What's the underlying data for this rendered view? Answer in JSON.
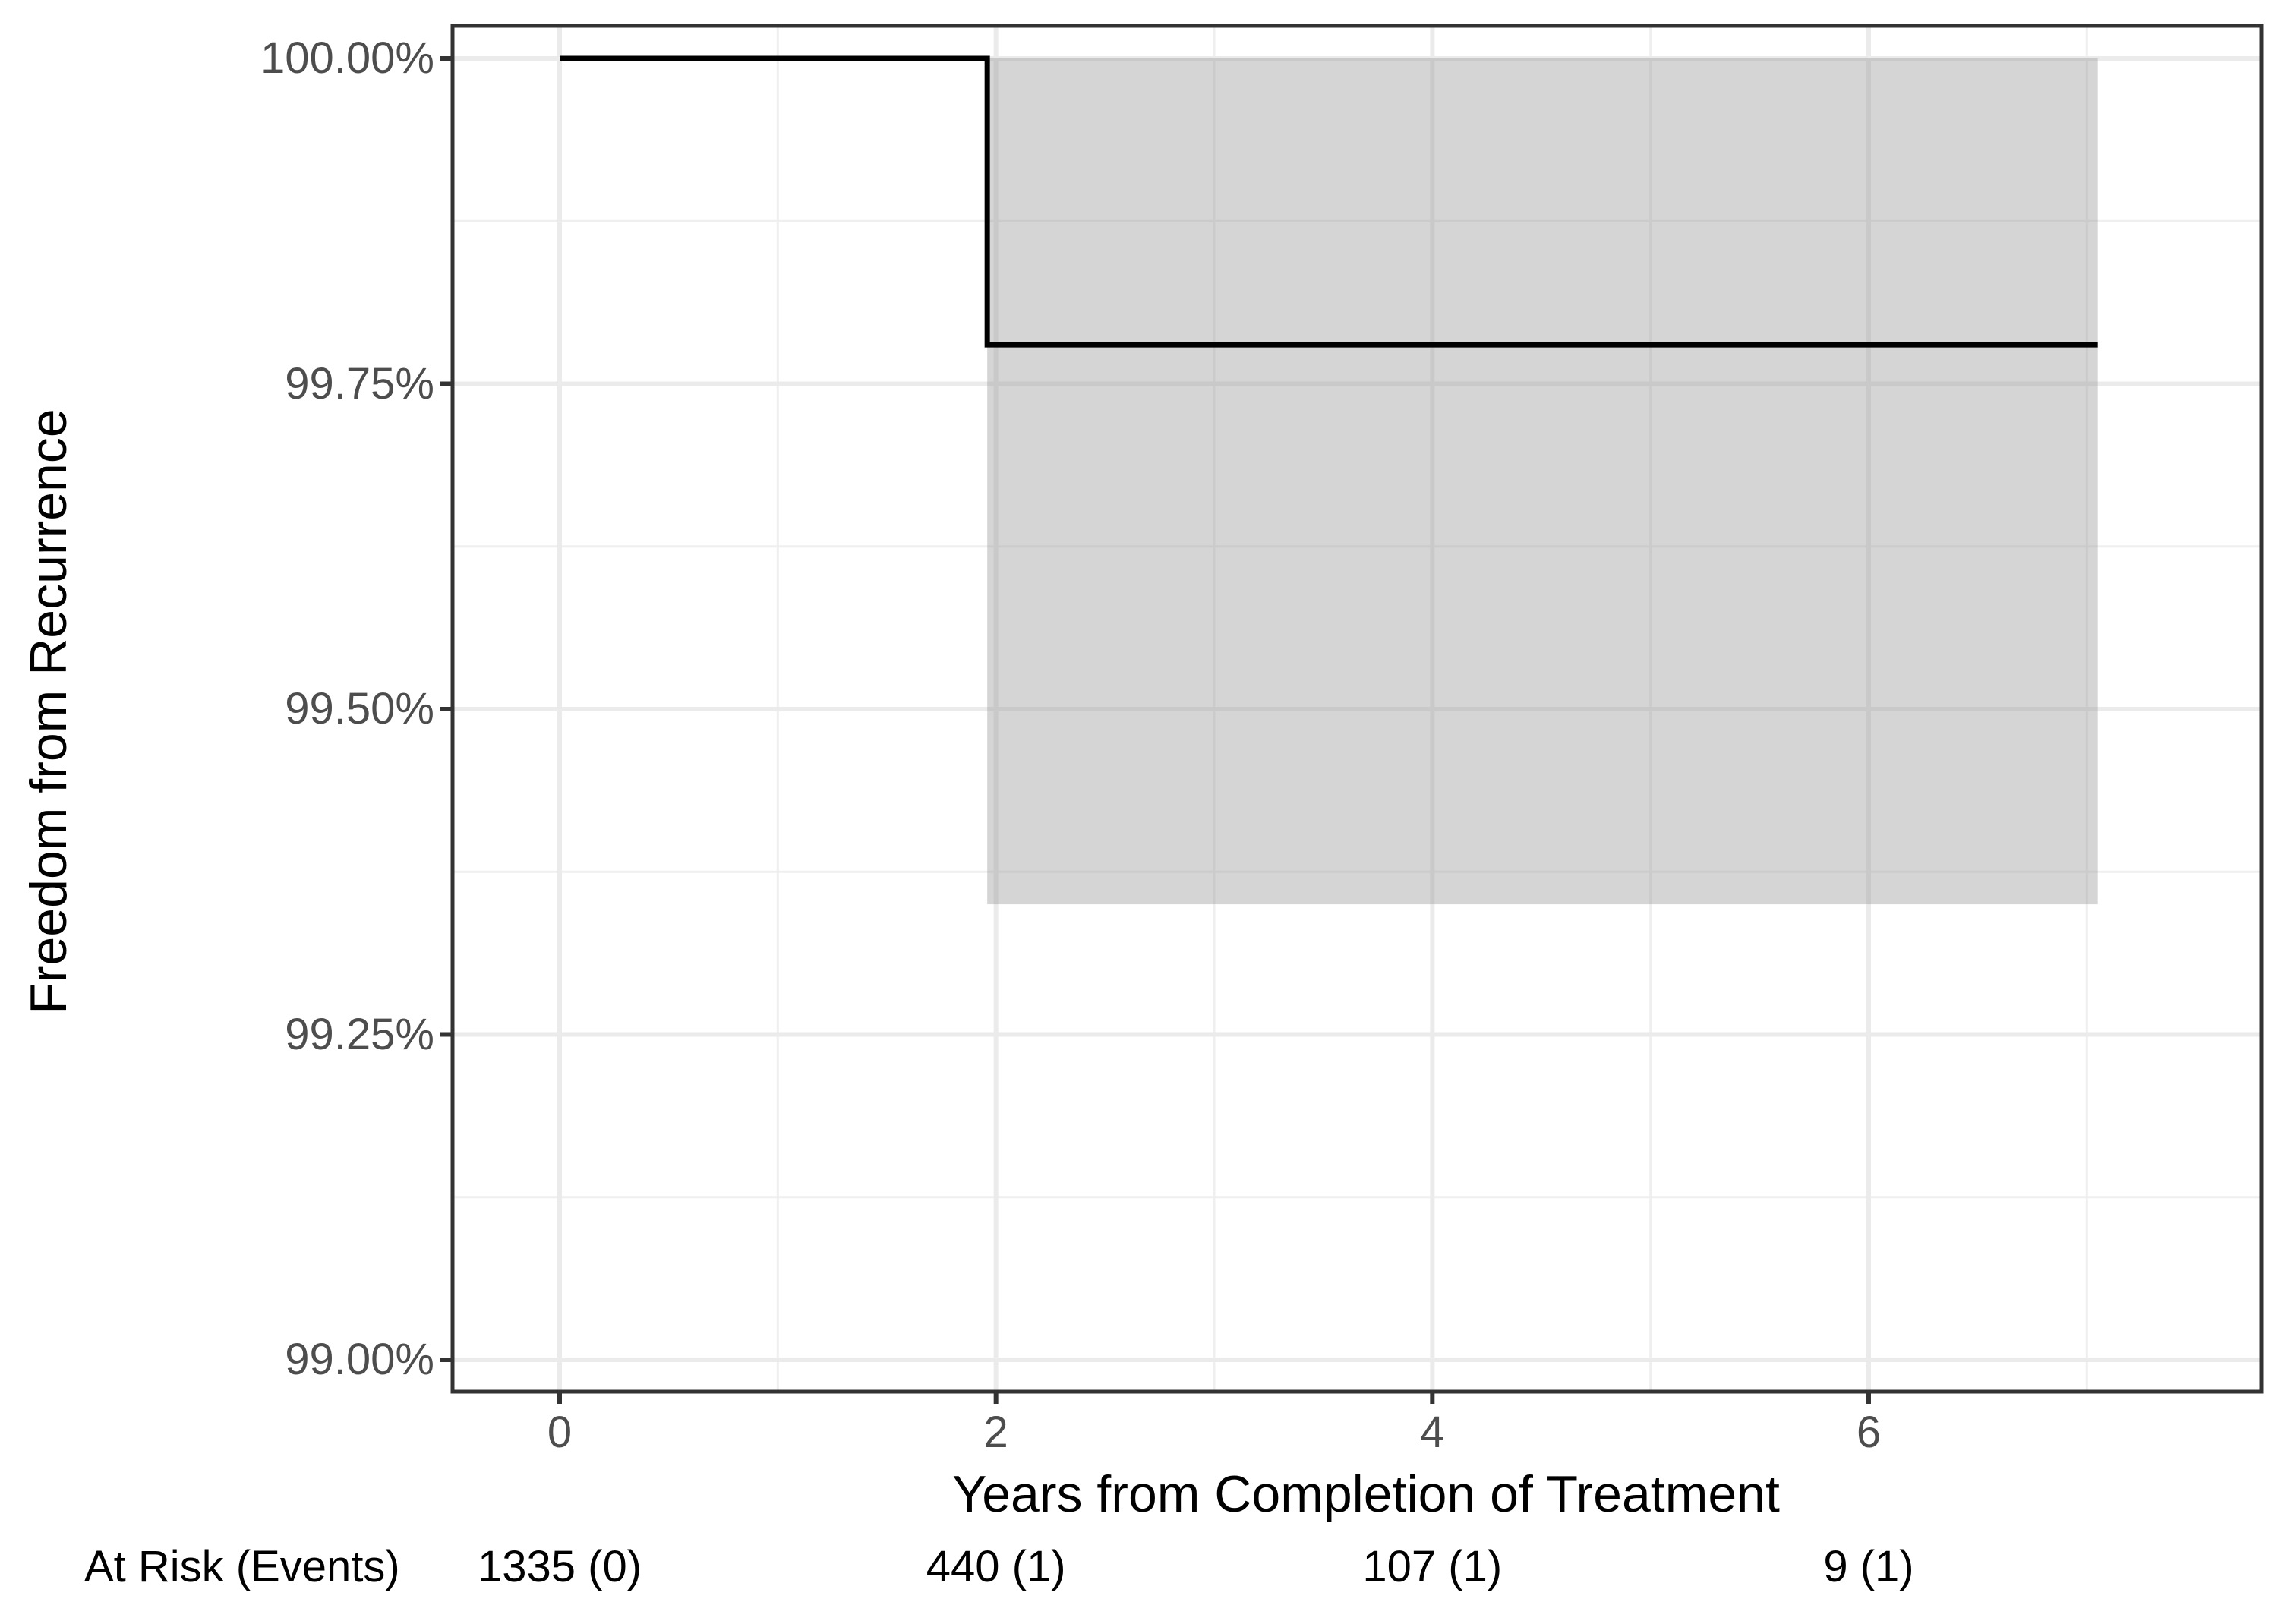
{
  "chart_data": {
    "type": "line",
    "subtype": "kaplan-meier-step-with-confidence-band",
    "title": "",
    "xlabel": "Years from Completion of Treatment",
    "ylabel": "Freedom from Recurrence",
    "xlim": [
      -0.49,
      7.8
    ],
    "ylim": [
      98.98,
      100.02
    ],
    "grid": "major-and-minor",
    "legend_position": "none",
    "x_ticks": [
      {
        "value": 0,
        "label": "0"
      },
      {
        "value": 2,
        "label": "2"
      },
      {
        "value": 4,
        "label": "4"
      },
      {
        "value": 6,
        "label": "6"
      }
    ],
    "x_minor_gridlines": [
      1,
      3,
      5,
      7
    ],
    "y_ticks": [
      {
        "value": 100.0,
        "label": "100.00%"
      },
      {
        "value": 99.75,
        "label": "99.75%"
      },
      {
        "value": 99.5,
        "label": "99.50%"
      },
      {
        "value": 99.25,
        "label": "99.25%"
      },
      {
        "value": 99.0,
        "label": "99.00%"
      }
    ],
    "y_minor_gridlines": [
      99.875,
      99.625,
      99.375,
      99.125
    ],
    "series": [
      {
        "name": "KM estimate",
        "color": "#000000",
        "step_points": [
          {
            "x": 0,
            "y": 100.0
          },
          {
            "x": 1.96,
            "y": 100.0
          },
          {
            "x": 1.96,
            "y": 99.78
          },
          {
            "x": 7.05,
            "y": 99.78
          }
        ]
      }
    ],
    "confidence_band": {
      "x_start": 1.96,
      "x_end": 7.05,
      "upper": 100.0,
      "lower": 99.35,
      "fill": "rgba(150,150,150,0.4)"
    },
    "at_risk_table": {
      "row_label": "At Risk (Events)",
      "entries": [
        {
          "x": 0,
          "label": "1335 (0)"
        },
        {
          "x": 2,
          "label": "440 (1)"
        },
        {
          "x": 4,
          "label": "107 (1)"
        },
        {
          "x": 6,
          "label": "9 (1)"
        }
      ]
    },
    "colors": {
      "curve": "#000000",
      "band_fill": "rgba(150,150,150,0.4)",
      "grid_major": "#ebebeb",
      "grid_minor": "#efefef",
      "panel_border": "#333333",
      "tick_mark": "#333333",
      "tick_label": "#4d4d4d",
      "axis_title": "#000000",
      "at_risk_text": "#000000",
      "background": "#ffffff"
    }
  }
}
